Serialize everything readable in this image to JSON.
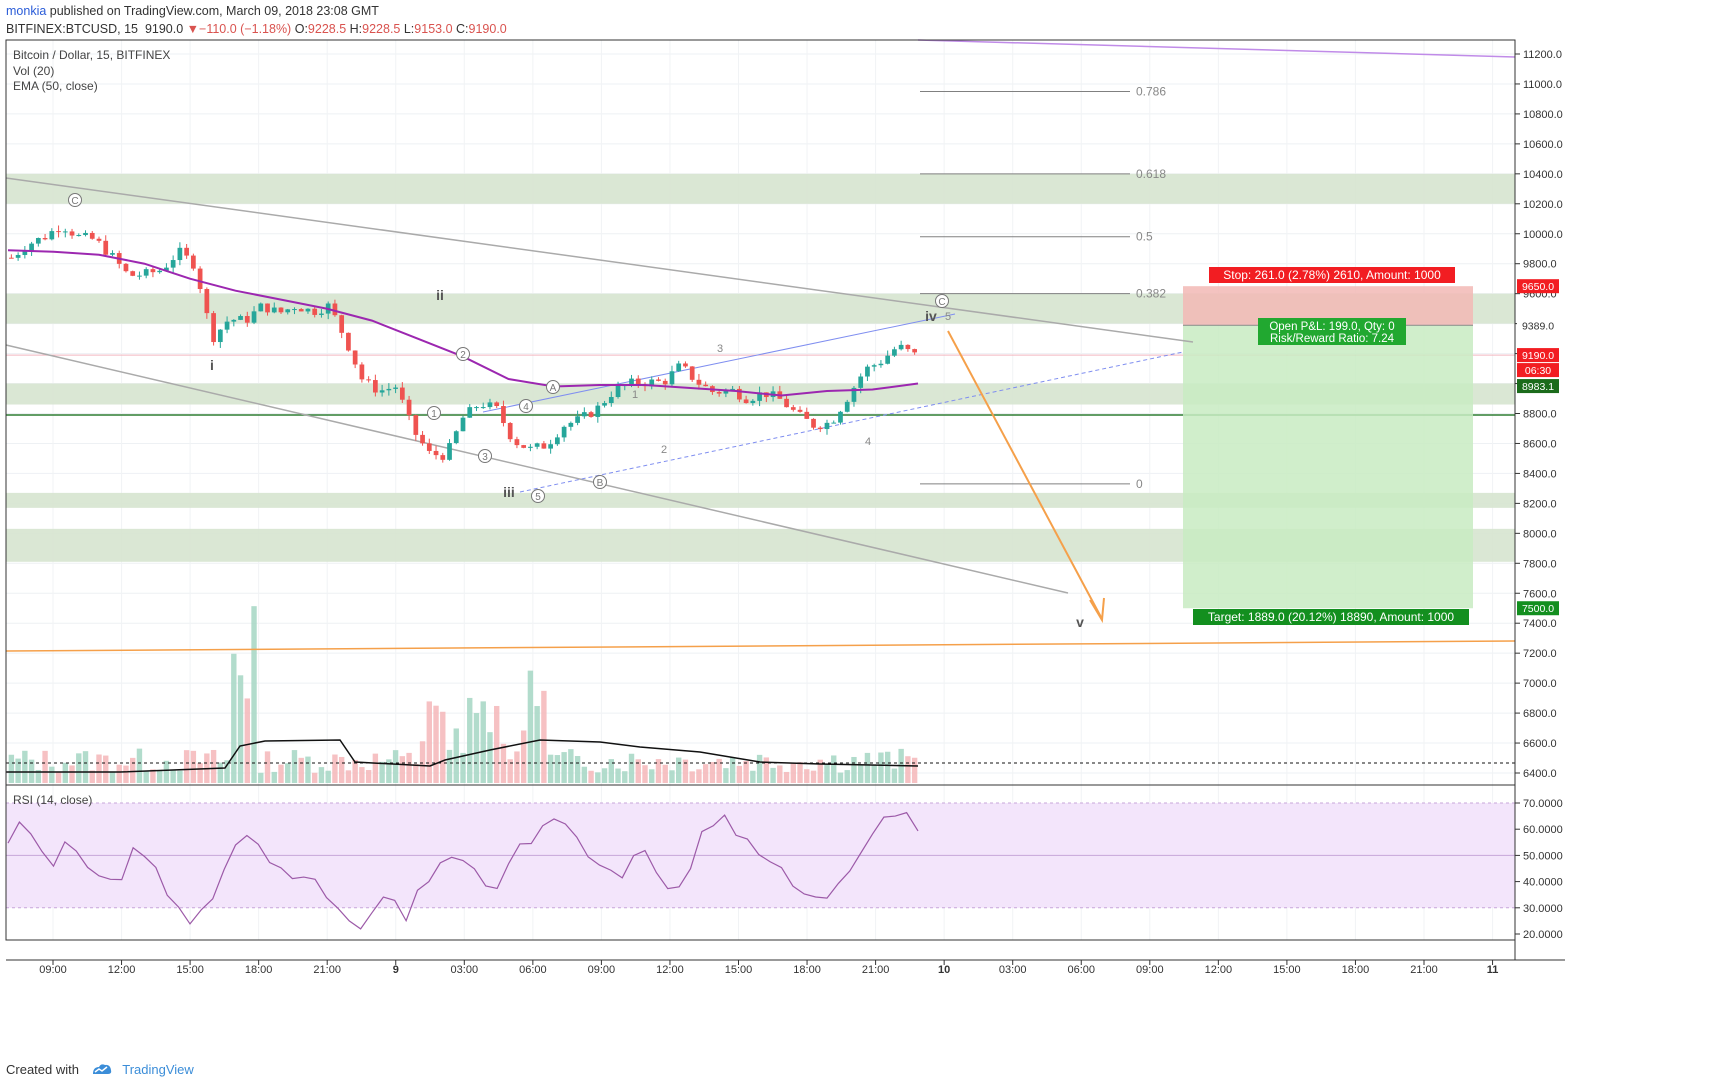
{
  "header": {
    "author": "monkia",
    "published_text": "published on TradingView.com, March 09, 2018 23:08 GMT",
    "symbol_line": "BITFINEX:BTCUSD, 15",
    "last": "9190.0",
    "change_arrow": "▼",
    "change": "−110.0 (−1.18%)",
    "o_label": "O:",
    "o": "9228.5",
    "h_label": "H:",
    "h": "9228.5",
    "l_label": "L:",
    "l": "9153.0",
    "c_label": "C:",
    "c": "9190.0"
  },
  "legends": {
    "main": "Bitcoin / Dollar, 15, BITFINEX",
    "vol": "Vol (20)",
    "ema": "EMA (50, close)",
    "rsi": "RSI (14, close)"
  },
  "price_axis": [
    "11200.0",
    "11000.0",
    "10800.0",
    "10600.0",
    "10400.0",
    "10200.0",
    "10000.0",
    "9800.0",
    "9600.0",
    "9400.0",
    "9200.0",
    "9000.0",
    "8800.0",
    "8600.0",
    "8400.0",
    "8200.0",
    "8000.0",
    "7800.0",
    "7600.0",
    "7400.0",
    "7200.0",
    "7000.0",
    "6800.0",
    "6600.0",
    "6400.0"
  ],
  "rsi_axis": [
    "70.0000",
    "60.0000",
    "50.0000",
    "40.0000",
    "30.0000",
    "20.0000"
  ],
  "time_axis": [
    "09:00",
    "12:00",
    "15:00",
    "18:00",
    "21:00",
    "9",
    "03:00",
    "06:00",
    "09:00",
    "12:00",
    "15:00",
    "18:00",
    "21:00",
    "10",
    "03:00",
    "06:00",
    "09:00",
    "12:00",
    "15:00",
    "18:00",
    "21:00",
    "11"
  ],
  "price_tags": {
    "stop": "9650.0",
    "entry": "9389.0",
    "last": "9190.0",
    "countdown": "06:30",
    "ema": "8983.1",
    "target": "7500.0"
  },
  "position": {
    "stop_label": "Stop: 261.0 (2.78%) 2610, Amount: 1000",
    "pnl_label": "Open P&L: 199.0, Qty: 0",
    "rr_label": "Risk/Reward Ratio: 7.24",
    "target_label": "Target: 1889.0 (20.12%) 18890, Amount: 1000"
  },
  "fib_levels": [
    {
      "label": "0.786",
      "price": 10950
    },
    {
      "label": "0.618",
      "price": 10400
    },
    {
      "label": "0.5",
      "price": 9980
    },
    {
      "label": "0.382",
      "price": 9600
    },
    {
      "label": "0",
      "price": 8330
    }
  ],
  "wave_labels": {
    "roman": [
      "i",
      "ii",
      "iii",
      "iv",
      "v"
    ],
    "circled": [
      "C",
      "1",
      "2",
      "3",
      "4",
      "5",
      "A",
      "B",
      "C"
    ],
    "minor": [
      "1",
      "2",
      "3",
      "4",
      "5"
    ]
  },
  "colors": {
    "up": "#26a69a",
    "down": "#ef5350",
    "ema": "#9c27b0",
    "zone": "#d6e4cf",
    "stop": "#f44336",
    "target": "#4caf50",
    "fib": "#808080",
    "orange": "#f5a04a",
    "rsi_band": "#f3e5fb"
  },
  "footer": {
    "created_with": "Created with",
    "brand": "TradingView"
  },
  "chart_data": {
    "type": "candlestick",
    "title": "Bitcoin / Dollar, 15, BITFINEX",
    "ylim": [
      6300,
      11300
    ],
    "series": [
      {
        "name": "BTCUSD",
        "close_path": [
          9840,
          9930,
          9980,
          10060,
          9980,
          9960,
          9850,
          9720,
          9730,
          9760,
          9880,
          9790,
          9300,
          9430,
          9420,
          9520,
          9470,
          9520,
          9480,
          9520,
          9290,
          9020,
          8950,
          8980,
          8690,
          8530,
          8520,
          8770,
          8870,
          8830,
          8620,
          8560,
          8590,
          8720,
          8760,
          8830,
          8950,
          9000,
          9010,
          9010,
          9120,
          9010,
          8940,
          8960,
          8900,
          8940,
          8890,
          8790,
          8720,
          8740,
          8910,
          9090,
          9150,
          9250,
          9190
        ]
      },
      {
        "name": "EMA (50, close)",
        "values": [
          9890,
          9880,
          9860,
          9800,
          9700,
          9620,
          9560,
          9500,
          9420,
          9300,
          9180,
          9030,
          8980,
          8990,
          8990,
          8970,
          8950,
          8920,
          8950,
          8960,
          9000
        ]
      }
    ],
    "stop": 9650.0,
    "entry": 9389.0,
    "target": 7500.0,
    "last": 9190.0
  }
}
